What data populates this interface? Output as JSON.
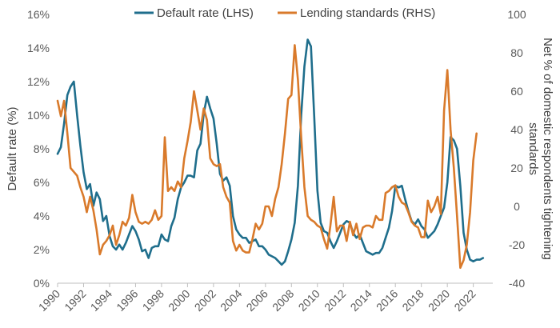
{
  "colors": {
    "default_rate": "#1f6e8c",
    "lending_standards": "#d97a2b",
    "axis": "#bfbfbf",
    "text": "#595959"
  },
  "chart_data": {
    "type": "line",
    "grid": false,
    "legend_position": "top-center",
    "left_axis": {
      "label": "Default rate (%)",
      "ylim": [
        0,
        16
      ],
      "ticks": [
        "0%",
        "2%",
        "4%",
        "6%",
        "8%",
        "10%",
        "12%",
        "14%",
        "16%"
      ],
      "tick_values": [
        0,
        2,
        4,
        6,
        8,
        10,
        12,
        14,
        16
      ]
    },
    "right_axis": {
      "label_line1": "Net % of domestic respondents tightening",
      "label_line2": "standards",
      "ylim": [
        -40,
        100
      ],
      "ticks": [
        "-40",
        "-20",
        "0",
        "20",
        "40",
        "60",
        "80",
        "100"
      ],
      "tick_values": [
        -40,
        -20,
        0,
        20,
        40,
        60,
        80,
        100
      ]
    },
    "x_axis": {
      "range": [
        1990,
        2023.5
      ],
      "ticks": [
        "1990",
        "1992",
        "1994",
        "1996",
        "1998",
        "2000",
        "2002",
        "2004",
        "2006",
        "2008",
        "2010",
        "2012",
        "2014",
        "2016",
        "2018",
        "2020",
        "2022"
      ],
      "tick_values": [
        1990,
        1992,
        1994,
        1996,
        1998,
        2000,
        2002,
        2004,
        2006,
        2008,
        2010,
        2012,
        2014,
        2016,
        2018,
        2020,
        2022
      ]
    },
    "series": [
      {
        "name": "Default rate (LHS)",
        "axis": "left",
        "points": [
          [
            1990.0,
            7.7
          ],
          [
            1990.25,
            8.1
          ],
          [
            1990.5,
            9.5
          ],
          [
            1990.75,
            11.2
          ],
          [
            1991.0,
            11.7
          ],
          [
            1991.25,
            12.0
          ],
          [
            1991.5,
            10.0
          ],
          [
            1991.75,
            8.2
          ],
          [
            1992.0,
            6.6
          ],
          [
            1992.25,
            5.6
          ],
          [
            1992.5,
            5.9
          ],
          [
            1992.75,
            4.6
          ],
          [
            1993.0,
            5.4
          ],
          [
            1993.25,
            5.0
          ],
          [
            1993.5,
            3.7
          ],
          [
            1993.75,
            4.0
          ],
          [
            1994.0,
            2.8
          ],
          [
            1994.25,
            2.2
          ],
          [
            1994.5,
            2.0
          ],
          [
            1994.75,
            2.3
          ],
          [
            1995.0,
            2.0
          ],
          [
            1995.25,
            2.4
          ],
          [
            1995.5,
            2.9
          ],
          [
            1995.75,
            3.4
          ],
          [
            1996.0,
            3.1
          ],
          [
            1996.25,
            2.6
          ],
          [
            1996.5,
            1.9
          ],
          [
            1996.75,
            2.0
          ],
          [
            1997.0,
            1.5
          ],
          [
            1997.25,
            2.1
          ],
          [
            1997.5,
            2.2
          ],
          [
            1997.75,
            2.2
          ],
          [
            1998.0,
            2.9
          ],
          [
            1998.25,
            2.6
          ],
          [
            1998.5,
            2.5
          ],
          [
            1998.75,
            3.4
          ],
          [
            1999.0,
            3.9
          ],
          [
            1999.25,
            5.0
          ],
          [
            1999.5,
            5.7
          ],
          [
            1999.75,
            6.0
          ],
          [
            2000.0,
            6.4
          ],
          [
            2000.25,
            6.4
          ],
          [
            2000.5,
            6.3
          ],
          [
            2000.75,
            7.9
          ],
          [
            2001.0,
            8.3
          ],
          [
            2001.25,
            10.1
          ],
          [
            2001.5,
            11.1
          ],
          [
            2001.75,
            10.4
          ],
          [
            2002.0,
            9.8
          ],
          [
            2002.25,
            8.3
          ],
          [
            2002.5,
            6.5
          ],
          [
            2002.75,
            6.1
          ],
          [
            2003.0,
            6.3
          ],
          [
            2003.25,
            5.8
          ],
          [
            2003.5,
            4.0
          ],
          [
            2003.75,
            3.2
          ],
          [
            2004.0,
            2.9
          ],
          [
            2004.25,
            2.7
          ],
          [
            2004.5,
            2.7
          ],
          [
            2004.75,
            2.4
          ],
          [
            2005.0,
            2.5
          ],
          [
            2005.25,
            2.6
          ],
          [
            2005.5,
            2.2
          ],
          [
            2005.75,
            2.2
          ],
          [
            2006.0,
            2.0
          ],
          [
            2006.25,
            1.7
          ],
          [
            2006.5,
            1.6
          ],
          [
            2006.75,
            1.5
          ],
          [
            2007.0,
            1.3
          ],
          [
            2007.25,
            1.1
          ],
          [
            2007.5,
            1.3
          ],
          [
            2007.75,
            1.9
          ],
          [
            2008.0,
            2.6
          ],
          [
            2008.25,
            3.6
          ],
          [
            2008.5,
            5.8
          ],
          [
            2008.75,
            10.0
          ],
          [
            2009.0,
            12.9
          ],
          [
            2009.25,
            14.5
          ],
          [
            2009.5,
            14.1
          ],
          [
            2009.75,
            10.0
          ],
          [
            2010.0,
            5.5
          ],
          [
            2010.25,
            3.6
          ],
          [
            2010.5,
            3.1
          ],
          [
            2010.75,
            3.0
          ],
          [
            2011.0,
            2.5
          ],
          [
            2011.25,
            2.1
          ],
          [
            2011.5,
            2.5
          ],
          [
            2011.75,
            3.0
          ],
          [
            2012.0,
            3.5
          ],
          [
            2012.25,
            3.7
          ],
          [
            2012.5,
            3.6
          ],
          [
            2012.75,
            3.0
          ],
          [
            2013.0,
            2.7
          ],
          [
            2013.25,
            2.9
          ],
          [
            2013.5,
            2.4
          ],
          [
            2013.75,
            1.9
          ],
          [
            2014.0,
            1.8
          ],
          [
            2014.25,
            1.7
          ],
          [
            2014.5,
            1.8
          ],
          [
            2014.75,
            1.8
          ],
          [
            2015.0,
            2.1
          ],
          [
            2015.25,
            2.7
          ],
          [
            2015.5,
            3.3
          ],
          [
            2015.75,
            4.3
          ],
          [
            2016.0,
            5.8
          ],
          [
            2016.25,
            5.7
          ],
          [
            2016.5,
            5.8
          ],
          [
            2016.75,
            5.0
          ],
          [
            2017.0,
            4.3
          ],
          [
            2017.25,
            3.7
          ],
          [
            2017.5,
            3.5
          ],
          [
            2017.75,
            3.8
          ],
          [
            2018.0,
            3.4
          ],
          [
            2018.25,
            3.2
          ],
          [
            2018.5,
            2.7
          ],
          [
            2018.75,
            2.9
          ],
          [
            2019.0,
            3.1
          ],
          [
            2019.25,
            3.5
          ],
          [
            2019.5,
            4.0
          ],
          [
            2019.75,
            4.5
          ],
          [
            2020.0,
            6.0
          ],
          [
            2020.25,
            8.7
          ],
          [
            2020.5,
            8.5
          ],
          [
            2020.75,
            8.0
          ],
          [
            2021.0,
            5.8
          ],
          [
            2021.25,
            3.0
          ],
          [
            2021.5,
            2.0
          ],
          [
            2021.75,
            1.4
          ],
          [
            2022.0,
            1.3
          ],
          [
            2022.25,
            1.4
          ],
          [
            2022.5,
            1.4
          ],
          [
            2022.75,
            1.5
          ]
        ]
      },
      {
        "name": "Lending standards (RHS)",
        "axis": "right",
        "points": [
          [
            1990.0,
            55
          ],
          [
            1990.25,
            47
          ],
          [
            1990.5,
            55
          ],
          [
            1990.75,
            38
          ],
          [
            1991.0,
            20
          ],
          [
            1991.25,
            18
          ],
          [
            1991.5,
            16
          ],
          [
            1991.75,
            10
          ],
          [
            1992.0,
            5
          ],
          [
            1992.25,
            -3
          ],
          [
            1992.5,
            5
          ],
          [
            1992.75,
            -2
          ],
          [
            1993.0,
            -12
          ],
          [
            1993.25,
            -25
          ],
          [
            1993.5,
            -20
          ],
          [
            1993.75,
            -18
          ],
          [
            1994.0,
            -15
          ],
          [
            1994.25,
            -10
          ],
          [
            1994.5,
            -20
          ],
          [
            1994.75,
            -15
          ],
          [
            1995.0,
            -8
          ],
          [
            1995.25,
            -10
          ],
          [
            1995.5,
            -6
          ],
          [
            1995.75,
            6
          ],
          [
            1996.0,
            -3
          ],
          [
            1996.25,
            -8
          ],
          [
            1996.5,
            -9
          ],
          [
            1996.75,
            -8
          ],
          [
            1997.0,
            -9
          ],
          [
            1997.25,
            -7
          ],
          [
            1997.5,
            -2
          ],
          [
            1997.75,
            -7
          ],
          [
            1998.0,
            -5
          ],
          [
            1998.25,
            36
          ],
          [
            1998.5,
            8
          ],
          [
            1998.75,
            10
          ],
          [
            1999.0,
            8
          ],
          [
            1999.25,
            13
          ],
          [
            1999.5,
            10
          ],
          [
            1999.75,
            25
          ],
          [
            2000.0,
            34
          ],
          [
            2000.25,
            44
          ],
          [
            2000.5,
            60
          ],
          [
            2000.75,
            50
          ],
          [
            2001.0,
            40
          ],
          [
            2001.25,
            51
          ],
          [
            2001.5,
            45
          ],
          [
            2001.75,
            25
          ],
          [
            2002.0,
            22
          ],
          [
            2002.25,
            21
          ],
          [
            2002.5,
            22
          ],
          [
            2002.75,
            10
          ],
          [
            2003.0,
            5
          ],
          [
            2003.25,
            2
          ],
          [
            2003.5,
            -18
          ],
          [
            2003.75,
            -23
          ],
          [
            2004.0,
            -20
          ],
          [
            2004.25,
            -23
          ],
          [
            2004.5,
            -24
          ],
          [
            2004.75,
            -24
          ],
          [
            2005.0,
            -17
          ],
          [
            2005.25,
            -9
          ],
          [
            2005.5,
            -12
          ],
          [
            2005.75,
            -9
          ],
          [
            2006.0,
            0
          ],
          [
            2006.25,
            0
          ],
          [
            2006.5,
            -5
          ],
          [
            2006.75,
            4
          ],
          [
            2007.0,
            10
          ],
          [
            2007.25,
            22
          ],
          [
            2007.5,
            38
          ],
          [
            2007.75,
            56
          ],
          [
            2008.0,
            58
          ],
          [
            2008.25,
            84
          ],
          [
            2008.5,
            66
          ],
          [
            2008.75,
            36
          ],
          [
            2009.0,
            10
          ],
          [
            2009.25,
            -5
          ],
          [
            2009.5,
            -7
          ],
          [
            2009.75,
            -8
          ],
          [
            2010.0,
            -10
          ],
          [
            2010.25,
            -11
          ],
          [
            2010.5,
            -17
          ],
          [
            2010.75,
            -22
          ],
          [
            2011.0,
            -10
          ],
          [
            2011.25,
            5
          ],
          [
            2011.5,
            -13
          ],
          [
            2011.75,
            -10
          ],
          [
            2012.0,
            -10
          ],
          [
            2012.25,
            -18
          ],
          [
            2012.5,
            -8
          ],
          [
            2012.75,
            -15
          ],
          [
            2013.0,
            -9
          ],
          [
            2013.25,
            -17
          ],
          [
            2013.5,
            -11
          ],
          [
            2013.75,
            -10
          ],
          [
            2014.0,
            -10
          ],
          [
            2014.25,
            -11
          ],
          [
            2014.5,
            -5
          ],
          [
            2014.75,
            -7
          ],
          [
            2015.0,
            -7
          ],
          [
            2015.25,
            7
          ],
          [
            2015.5,
            8
          ],
          [
            2015.75,
            10
          ],
          [
            2016.0,
            11
          ],
          [
            2016.25,
            5
          ],
          [
            2016.5,
            2
          ],
          [
            2016.75,
            1
          ],
          [
            2017.0,
            -3
          ],
          [
            2017.25,
            -8
          ],
          [
            2017.5,
            -10
          ],
          [
            2017.75,
            -11
          ],
          [
            2018.0,
            -16
          ],
          [
            2018.25,
            -16
          ],
          [
            2018.5,
            3
          ],
          [
            2018.75,
            -3
          ],
          [
            2019.0,
            0
          ],
          [
            2019.25,
            5
          ],
          [
            2019.5,
            -4
          ],
          [
            2019.75,
            50
          ],
          [
            2020.0,
            71
          ],
          [
            2020.25,
            40
          ],
          [
            2020.5,
            20
          ],
          [
            2020.75,
            -5
          ],
          [
            2021.0,
            -32
          ],
          [
            2021.25,
            -28
          ],
          [
            2021.5,
            -20
          ],
          [
            2021.75,
            -3
          ],
          [
            2022.0,
            24
          ],
          [
            2022.25,
            38
          ]
        ]
      }
    ]
  }
}
